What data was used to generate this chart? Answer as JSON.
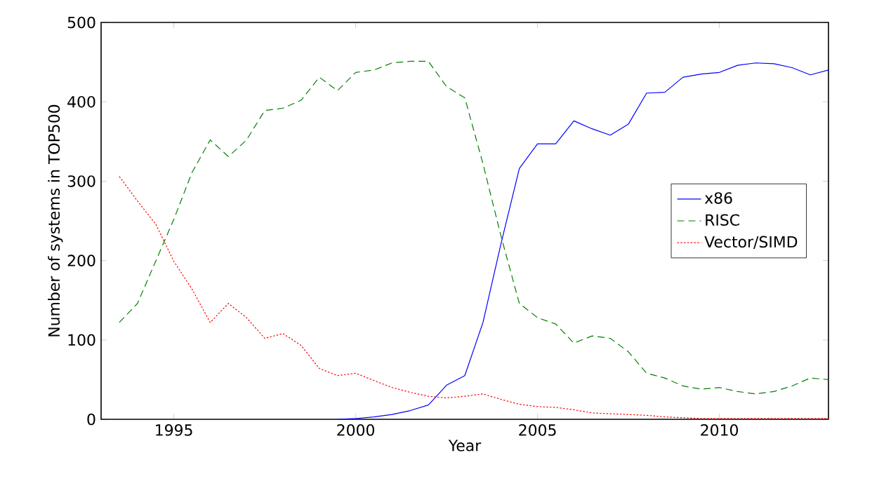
{
  "chart_data": {
    "type": "line",
    "xlabel": "Year",
    "ylabel": "Number of systems in TOP500",
    "x": [
      1993.5,
      1994,
      1994.5,
      1995,
      1995.5,
      1996,
      1996.5,
      1997,
      1997.5,
      1998,
      1998.5,
      1999,
      1999.5,
      2000,
      2000.5,
      2001,
      2001.5,
      2002,
      2002.5,
      2003,
      2003.5,
      2004,
      2004.5,
      2005,
      2005.5,
      2006,
      2006.5,
      2007,
      2007.5,
      2008,
      2008.5,
      2009,
      2009.5,
      2010,
      2010.5,
      2011,
      2011.5,
      2012,
      2012.5,
      2013
    ],
    "series": [
      {
        "name": "x86",
        "color": "#0000ff",
        "line_style": "solid",
        "values": [
          null,
          null,
          null,
          null,
          null,
          null,
          null,
          null,
          null,
          null,
          null,
          null,
          0,
          1,
          3,
          6,
          11,
          18,
          43,
          55,
          122,
          222,
          316,
          347,
          347,
          376,
          366,
          358,
          372,
          411,
          412,
          431,
          435,
          437,
          446,
          449,
          448,
          443,
          434,
          440
        ]
      },
      {
        "name": "RISC",
        "color": "#008000",
        "line_style": "dashed",
        "values": [
          122,
          146,
          199,
          252,
          311,
          352,
          331,
          352,
          389,
          392,
          402,
          431,
          414,
          437,
          440,
          449,
          451,
          451,
          419,
          405,
          322,
          230,
          146,
          128,
          120,
          96,
          105,
          102,
          85,
          58,
          52,
          42,
          38,
          40,
          35,
          32,
          35,
          42,
          52,
          50
        ]
      },
      {
        "name": "Vector/SIMD",
        "color": "#ff0000",
        "line_style": "dotted",
        "values": [
          306,
          275,
          246,
          199,
          164,
          122,
          146,
          128,
          102,
          108,
          93,
          64,
          55,
          58,
          49,
          40,
          34,
          29,
          27,
          29,
          32,
          25,
          19,
          16,
          15,
          12,
          8,
          7,
          6,
          5,
          3,
          2,
          1,
          1,
          1,
          1,
          1,
          1,
          1,
          1
        ]
      }
    ],
    "xlim": [
      1993,
      2013
    ],
    "ylim": [
      0,
      500
    ],
    "xticks": [
      1995,
      2000,
      2005,
      2010
    ],
    "yticks": [
      0,
      100,
      200,
      300,
      400,
      500
    ],
    "grid": false,
    "legend": "right",
    "marker": "none"
  }
}
